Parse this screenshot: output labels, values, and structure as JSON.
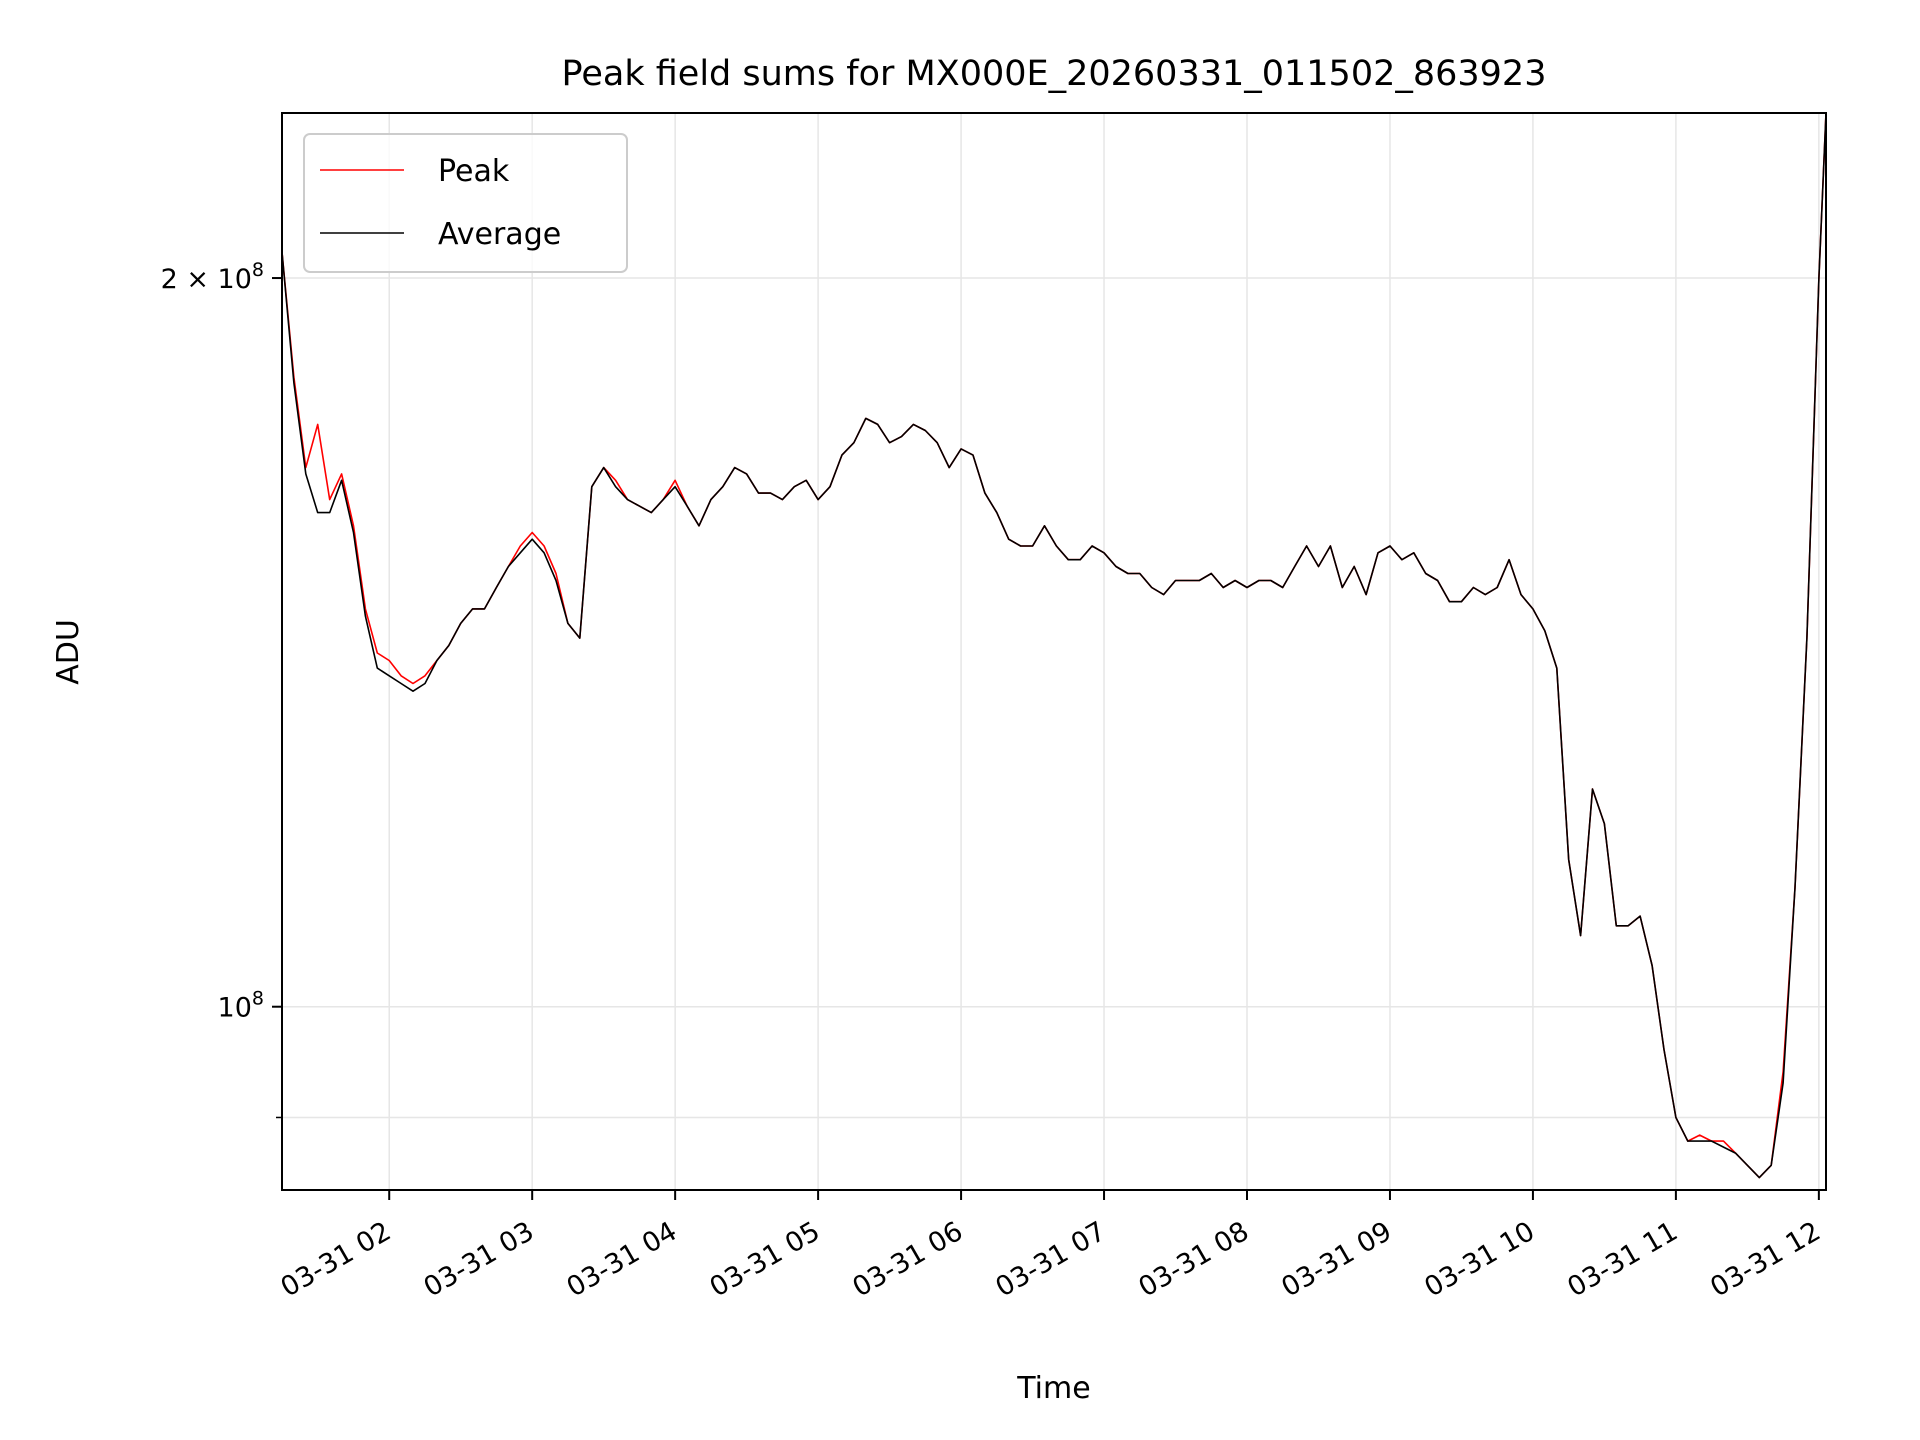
{
  "chart_data": {
    "type": "line",
    "title": "Peak field sums for MX000E_20260331_011502_863923",
    "xlabel": "Time",
    "ylabel": "ADU",
    "y_scale": "log",
    "ylim": [
      84000000,
      234000000
    ],
    "xlim": [
      "2026-03-31 01:15",
      "2026-03-31 12:03"
    ],
    "grid": true,
    "legend_position": "upper-left",
    "x_ticks": [
      "03-31 02",
      "03-31 03",
      "03-31 04",
      "03-31 05",
      "03-31 06",
      "03-31 07",
      "03-31 08",
      "03-31 09",
      "03-31 10",
      "03-31 11",
      "03-31 12"
    ],
    "y_ticks": [
      {
        "value": 200000000,
        "base": "2 × 10",
        "exp": "8"
      },
      {
        "value": 100000000,
        "base": "10",
        "exp": "8"
      }
    ],
    "x": [
      "2026-03-31 01:15",
      "2026-03-31 01:20",
      "2026-03-31 01:25",
      "2026-03-31 01:30",
      "2026-03-31 01:35",
      "2026-03-31 01:40",
      "2026-03-31 01:45",
      "2026-03-31 01:50",
      "2026-03-31 01:55",
      "2026-03-31 02:00",
      "2026-03-31 02:05",
      "2026-03-31 02:10",
      "2026-03-31 02:15",
      "2026-03-31 02:20",
      "2026-03-31 02:25",
      "2026-03-31 02:30",
      "2026-03-31 02:35",
      "2026-03-31 02:40",
      "2026-03-31 02:45",
      "2026-03-31 02:50",
      "2026-03-31 02:55",
      "2026-03-31 03:00",
      "2026-03-31 03:05",
      "2026-03-31 03:10",
      "2026-03-31 03:15",
      "2026-03-31 03:20",
      "2026-03-31 03:25",
      "2026-03-31 03:30",
      "2026-03-31 03:35",
      "2026-03-31 03:40",
      "2026-03-31 03:45",
      "2026-03-31 03:50",
      "2026-03-31 03:55",
      "2026-03-31 04:00",
      "2026-03-31 04:05",
      "2026-03-31 04:10",
      "2026-03-31 04:15",
      "2026-03-31 04:20",
      "2026-03-31 04:25",
      "2026-03-31 04:30",
      "2026-03-31 04:35",
      "2026-03-31 04:40",
      "2026-03-31 04:45",
      "2026-03-31 04:50",
      "2026-03-31 04:55",
      "2026-03-31 05:00",
      "2026-03-31 05:05",
      "2026-03-31 05:10",
      "2026-03-31 05:15",
      "2026-03-31 05:20",
      "2026-03-31 05:25",
      "2026-03-31 05:30",
      "2026-03-31 05:35",
      "2026-03-31 05:40",
      "2026-03-31 05:45",
      "2026-03-31 05:50",
      "2026-03-31 05:55",
      "2026-03-31 06:00",
      "2026-03-31 06:05",
      "2026-03-31 06:10",
      "2026-03-31 06:15",
      "2026-03-31 06:20",
      "2026-03-31 06:25",
      "2026-03-31 06:30",
      "2026-03-31 06:35",
      "2026-03-31 06:40",
      "2026-03-31 06:45",
      "2026-03-31 06:50",
      "2026-03-31 06:55",
      "2026-03-31 07:00",
      "2026-03-31 07:05",
      "2026-03-31 07:10",
      "2026-03-31 07:15",
      "2026-03-31 07:20",
      "2026-03-31 07:25",
      "2026-03-31 07:30",
      "2026-03-31 07:35",
      "2026-03-31 07:40",
      "2026-03-31 07:45",
      "2026-03-31 07:50",
      "2026-03-31 07:55",
      "2026-03-31 08:00",
      "2026-03-31 08:05",
      "2026-03-31 08:10",
      "2026-03-31 08:15",
      "2026-03-31 08:20",
      "2026-03-31 08:25",
      "2026-03-31 08:30",
      "2026-03-31 08:35",
      "2026-03-31 08:40",
      "2026-03-31 08:45",
      "2026-03-31 08:50",
      "2026-03-31 08:55",
      "2026-03-31 09:00",
      "2026-03-31 09:05",
      "2026-03-31 09:10",
      "2026-03-31 09:15",
      "2026-03-31 09:20",
      "2026-03-31 09:25",
      "2026-03-31 09:30",
      "2026-03-31 09:35",
      "2026-03-31 09:40",
      "2026-03-31 09:45",
      "2026-03-31 09:50",
      "2026-03-31 09:55",
      "2026-03-31 10:00",
      "2026-03-31 10:05",
      "2026-03-31 10:10",
      "2026-03-31 10:15",
      "2026-03-31 10:20",
      "2026-03-31 10:25",
      "2026-03-31 10:30",
      "2026-03-31 10:35",
      "2026-03-31 10:40",
      "2026-03-31 10:45",
      "2026-03-31 10:50",
      "2026-03-31 10:55",
      "2026-03-31 11:00",
      "2026-03-31 11:05",
      "2026-03-31 11:10",
      "2026-03-31 11:15",
      "2026-03-31 11:20",
      "2026-03-31 11:25",
      "2026-03-31 11:30",
      "2026-03-31 11:35",
      "2026-03-31 11:40",
      "2026-03-31 11:45",
      "2026-03-31 11:50",
      "2026-03-31 11:55",
      "2026-03-31 12:00",
      "2026-03-31 12:03"
    ],
    "series": [
      {
        "name": "Peak",
        "color": "#ff0000",
        "values": [
          205000000,
          182000000,
          167000000,
          174000000,
          162000000,
          166000000,
          158000000,
          146000000,
          140000000,
          139000000,
          137000000,
          136000000,
          137000000,
          139000000,
          141000000,
          144000000,
          146000000,
          146000000,
          149000000,
          152000000,
          155000000,
          157000000,
          155000000,
          151000000,
          144000000,
          142000000,
          164000000,
          167000000,
          165000000,
          162000000,
          161000000,
          160000000,
          162000000,
          165000000,
          161000000,
          158000000,
          162000000,
          164000000,
          167000000,
          166000000,
          163000000,
          163000000,
          162000000,
          164000000,
          165000000,
          162000000,
          164000000,
          169000000,
          171000000,
          175000000,
          174000000,
          171000000,
          172000000,
          174000000,
          173000000,
          171000000,
          167000000,
          170000000,
          169000000,
          163000000,
          160000000,
          156000000,
          155000000,
          155000000,
          158000000,
          155000000,
          153000000,
          153000000,
          155000000,
          154000000,
          152000000,
          151000000,
          151000000,
          149000000,
          148000000,
          150000000,
          150000000,
          150000000,
          151000000,
          149000000,
          150000000,
          149000000,
          150000000,
          150000000,
          149000000,
          152000000,
          155000000,
          152000000,
          155000000,
          149000000,
          152000000,
          148000000,
          154000000,
          155000000,
          153000000,
          154000000,
          151000000,
          150000000,
          147000000,
          147000000,
          149000000,
          148000000,
          149000000,
          153000000,
          148000000,
          146000000,
          143000000,
          138000000,
          115000000,
          107000000,
          123000000,
          119000000,
          108000000,
          108000000,
          109000000,
          104000000,
          96000000,
          90000000,
          88000000,
          88500000,
          88000000,
          88000000,
          87000000,
          86000000,
          85000000,
          86000000,
          94000000,
          112000000,
          142000000,
          200000000,
          234000000
        ]
      },
      {
        "name": "Average",
        "color": "#000000",
        "values": [
          205000000,
          181000000,
          166000000,
          160000000,
          160000000,
          165000000,
          157000000,
          145000000,
          138000000,
          137000000,
          136000000,
          135000000,
          136000000,
          139000000,
          141000000,
          144000000,
          146000000,
          146000000,
          149000000,
          152000000,
          154000000,
          156000000,
          154000000,
          150000000,
          144000000,
          142000000,
          164000000,
          167000000,
          164000000,
          162000000,
          161000000,
          160000000,
          162000000,
          164000000,
          161000000,
          158000000,
          162000000,
          164000000,
          167000000,
          166000000,
          163000000,
          163000000,
          162000000,
          164000000,
          165000000,
          162000000,
          164000000,
          169000000,
          171000000,
          175000000,
          174000000,
          171000000,
          172000000,
          174000000,
          173000000,
          171000000,
          167000000,
          170000000,
          169000000,
          163000000,
          160000000,
          156000000,
          155000000,
          155000000,
          158000000,
          155000000,
          153000000,
          153000000,
          155000000,
          154000000,
          152000000,
          151000000,
          151000000,
          149000000,
          148000000,
          150000000,
          150000000,
          150000000,
          151000000,
          149000000,
          150000000,
          149000000,
          150000000,
          150000000,
          149000000,
          152000000,
          155000000,
          152000000,
          155000000,
          149000000,
          152000000,
          148000000,
          154000000,
          155000000,
          153000000,
          154000000,
          151000000,
          150000000,
          147000000,
          147000000,
          149000000,
          148000000,
          149000000,
          153000000,
          148000000,
          146000000,
          143000000,
          138000000,
          115000000,
          107000000,
          123000000,
          119000000,
          108000000,
          108000000,
          109000000,
          104000000,
          96000000,
          90000000,
          88000000,
          88000000,
          88000000,
          87500000,
          87000000,
          86000000,
          85000000,
          86000000,
          93000000,
          112000000,
          142000000,
          200000000,
          234000000
        ]
      }
    ]
  }
}
